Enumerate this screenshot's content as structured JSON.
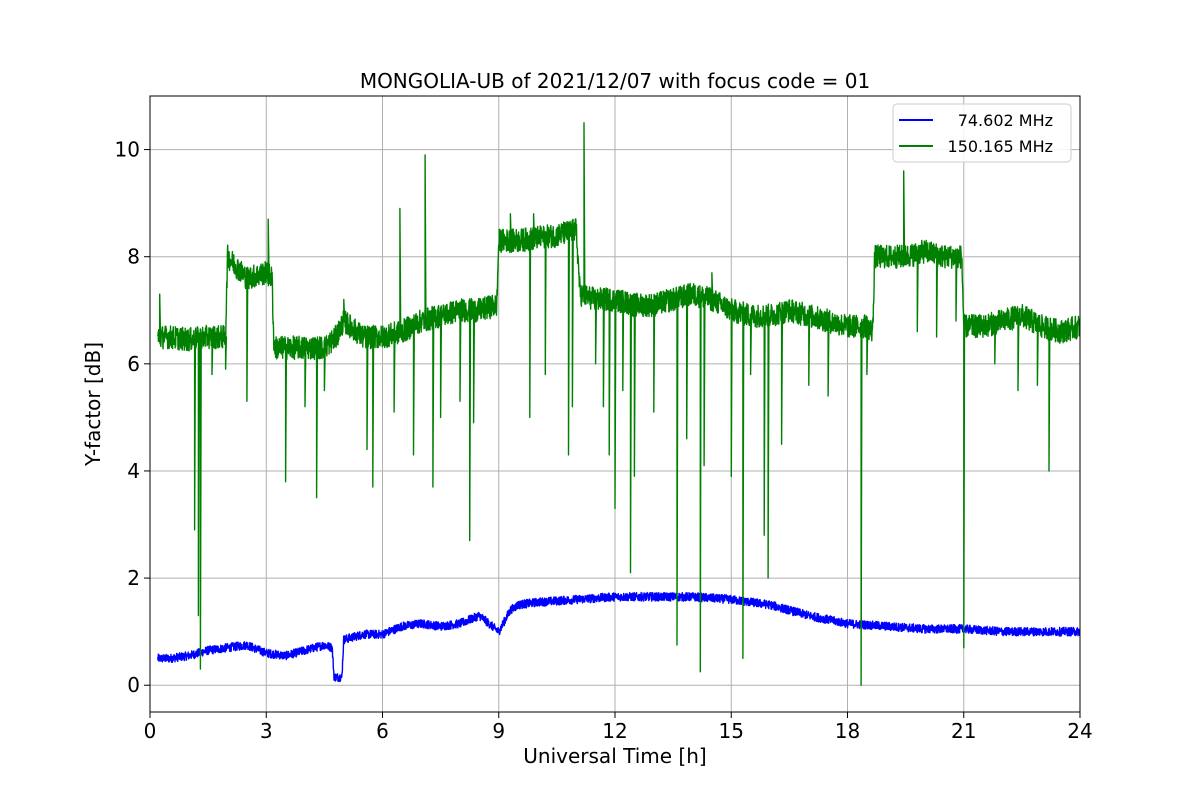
{
  "chart_data": {
    "type": "line",
    "title": "MONGOLIA-UB of 2021/12/07 with focus code = 01",
    "xlabel": "Universal Time [h]",
    "ylabel": "Y-factor [dB]",
    "xlim": [
      0,
      24
    ],
    "ylim": [
      -0.5,
      11
    ],
    "xticks": [
      0,
      3,
      6,
      9,
      12,
      15,
      18,
      21,
      24
    ],
    "yticks": [
      0,
      2,
      4,
      6,
      8,
      10
    ],
    "grid": true,
    "legend_position": "top-right",
    "series": [
      {
        "name": "74.602 MHz",
        "color": "#0000ff",
        "noise": 0.08,
        "points": [
          [
            0.2,
            0.5
          ],
          [
            0.5,
            0.5
          ],
          [
            1.0,
            0.55
          ],
          [
            1.5,
            0.65
          ],
          [
            2.0,
            0.7
          ],
          [
            2.5,
            0.75
          ],
          [
            3.0,
            0.6
          ],
          [
            3.5,
            0.55
          ],
          [
            4.0,
            0.65
          ],
          [
            4.5,
            0.75
          ],
          [
            4.7,
            0.7
          ],
          [
            4.75,
            0.15
          ],
          [
            4.95,
            0.15
          ],
          [
            5.0,
            0.85
          ],
          [
            5.5,
            0.95
          ],
          [
            6.0,
            0.95
          ],
          [
            6.5,
            1.1
          ],
          [
            7.0,
            1.15
          ],
          [
            7.5,
            1.1
          ],
          [
            8.0,
            1.15
          ],
          [
            8.5,
            1.3
          ],
          [
            9.0,
            1.0
          ],
          [
            9.3,
            1.4
          ],
          [
            9.5,
            1.5
          ],
          [
            10.0,
            1.55
          ],
          [
            11.0,
            1.6
          ],
          [
            12.0,
            1.65
          ],
          [
            13.0,
            1.65
          ],
          [
            14.0,
            1.65
          ],
          [
            15.0,
            1.6
          ],
          [
            16.0,
            1.5
          ],
          [
            17.0,
            1.3
          ],
          [
            18.0,
            1.15
          ],
          [
            19.0,
            1.1
          ],
          [
            20.0,
            1.05
          ],
          [
            21.0,
            1.05
          ],
          [
            22.0,
            1.0
          ],
          [
            23.0,
            1.0
          ],
          [
            24.0,
            1.0
          ]
        ],
        "spikes": []
      },
      {
        "name": "150.165 MHz",
        "color": "#008000",
        "noise": 0.22,
        "points": [
          [
            0.2,
            6.5
          ],
          [
            0.5,
            6.5
          ],
          [
            1.0,
            6.45
          ],
          [
            1.5,
            6.5
          ],
          [
            1.95,
            6.5
          ],
          [
            2.0,
            8.0
          ],
          [
            2.5,
            7.6
          ],
          [
            3.0,
            7.7
          ],
          [
            3.15,
            7.6
          ],
          [
            3.2,
            6.3
          ],
          [
            3.5,
            6.3
          ],
          [
            4.0,
            6.3
          ],
          [
            4.5,
            6.3
          ],
          [
            4.8,
            6.5
          ],
          [
            5.0,
            6.8
          ],
          [
            5.5,
            6.5
          ],
          [
            6.0,
            6.5
          ],
          [
            6.5,
            6.6
          ],
          [
            7.0,
            6.8
          ],
          [
            7.5,
            6.9
          ],
          [
            8.0,
            7.0
          ],
          [
            8.5,
            7.0
          ],
          [
            8.95,
            7.1
          ],
          [
            9.0,
            8.3
          ],
          [
            9.5,
            8.3
          ],
          [
            10.0,
            8.35
          ],
          [
            10.5,
            8.4
          ],
          [
            11.0,
            8.5
          ],
          [
            11.1,
            7.3
          ],
          [
            11.5,
            7.2
          ],
          [
            12.0,
            7.2
          ],
          [
            12.5,
            7.1
          ],
          [
            13.0,
            7.1
          ],
          [
            13.5,
            7.2
          ],
          [
            14.0,
            7.3
          ],
          [
            14.5,
            7.2
          ],
          [
            15.0,
            7.0
          ],
          [
            15.5,
            6.9
          ],
          [
            16.0,
            6.9
          ],
          [
            16.5,
            7.0
          ],
          [
            17.0,
            6.9
          ],
          [
            17.5,
            6.8
          ],
          [
            18.0,
            6.7
          ],
          [
            18.5,
            6.7
          ],
          [
            18.65,
            6.6
          ],
          [
            18.7,
            8.0
          ],
          [
            19.0,
            8.0
          ],
          [
            19.5,
            8.0
          ],
          [
            20.0,
            8.1
          ],
          [
            20.5,
            8.0
          ],
          [
            20.95,
            8.0
          ],
          [
            21.0,
            6.7
          ],
          [
            21.5,
            6.7
          ],
          [
            22.0,
            6.8
          ],
          [
            22.5,
            6.9
          ],
          [
            23.0,
            6.7
          ],
          [
            23.5,
            6.6
          ],
          [
            24.0,
            6.7
          ]
        ],
        "spikes": [
          [
            0.25,
            7.3
          ],
          [
            1.15,
            2.9
          ],
          [
            1.25,
            1.3
          ],
          [
            1.3,
            0.3
          ],
          [
            1.6,
            5.8
          ],
          [
            1.95,
            5.9
          ],
          [
            2.5,
            5.3
          ],
          [
            3.05,
            8.7
          ],
          [
            3.5,
            3.8
          ],
          [
            4.0,
            5.2
          ],
          [
            4.3,
            3.5
          ],
          [
            4.5,
            5.5
          ],
          [
            5.0,
            7.2
          ],
          [
            5.6,
            4.4
          ],
          [
            5.75,
            3.7
          ],
          [
            6.3,
            5.1
          ],
          [
            6.45,
            8.9
          ],
          [
            6.8,
            4.3
          ],
          [
            7.1,
            9.9
          ],
          [
            7.3,
            3.7
          ],
          [
            7.5,
            5.0
          ],
          [
            8.0,
            5.3
          ],
          [
            8.25,
            2.7
          ],
          [
            8.35,
            4.9
          ],
          [
            9.3,
            8.8
          ],
          [
            9.8,
            5.0
          ],
          [
            9.9,
            8.8
          ],
          [
            10.2,
            5.8
          ],
          [
            10.8,
            4.3
          ],
          [
            10.9,
            5.2
          ],
          [
            11.2,
            10.5
          ],
          [
            11.5,
            6.0
          ],
          [
            11.7,
            5.2
          ],
          [
            11.85,
            4.3
          ],
          [
            12.0,
            3.3
          ],
          [
            12.2,
            5.5
          ],
          [
            12.4,
            2.1
          ],
          [
            12.5,
            3.9
          ],
          [
            13.0,
            5.1
          ],
          [
            13.6,
            0.75
          ],
          [
            13.85,
            4.6
          ],
          [
            14.2,
            0.25
          ],
          [
            14.3,
            4.1
          ],
          [
            14.5,
            7.7
          ],
          [
            15.0,
            3.9
          ],
          [
            15.3,
            0.5
          ],
          [
            15.5,
            5.8
          ],
          [
            15.85,
            2.8
          ],
          [
            15.95,
            2.0
          ],
          [
            16.3,
            4.5
          ],
          [
            17.0,
            5.6
          ],
          [
            17.5,
            5.4
          ],
          [
            18.35,
            0.0
          ],
          [
            18.5,
            5.8
          ],
          [
            19.45,
            9.6
          ],
          [
            19.8,
            6.6
          ],
          [
            20.3,
            6.5
          ],
          [
            20.8,
            6.8
          ],
          [
            21.0,
            0.7
          ],
          [
            21.8,
            6.0
          ],
          [
            22.4,
            5.5
          ],
          [
            22.9,
            5.6
          ],
          [
            23.2,
            4.0
          ]
        ]
      }
    ]
  }
}
